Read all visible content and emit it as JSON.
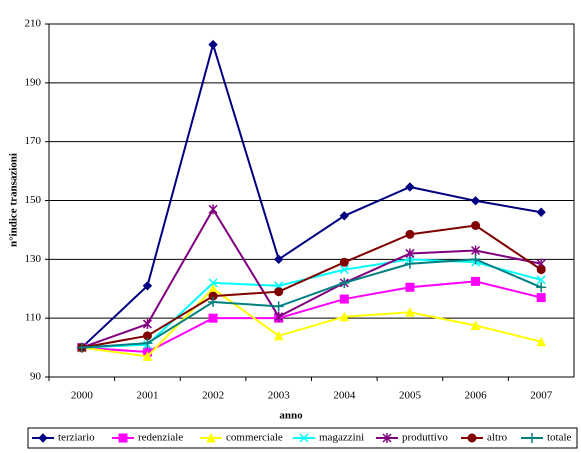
{
  "chart_data": {
    "type": "line",
    "x_label": "anno",
    "y_label": "n°indice  transazioni",
    "categories": [
      "2000",
      "2001",
      "2002",
      "2003",
      "2004",
      "2005",
      "2006",
      "2007"
    ],
    "ylim": [
      90,
      210
    ],
    "yticks": [
      90,
      110,
      130,
      150,
      170,
      190,
      210
    ],
    "grid": true,
    "legend": "bottom",
    "series": [
      {
        "name": "terziario",
        "color": "#000080",
        "marker": "diamond",
        "values": [
          100,
          121,
          203,
          130,
          144.8,
          154.6,
          149.9,
          146
        ]
      },
      {
        "name": "redenziale",
        "color": "#ff00ff",
        "marker": "square",
        "values": [
          100,
          98.5,
          110,
          110,
          116.5,
          120.5,
          122.5,
          117
        ]
      },
      {
        "name": "commerciale",
        "color": "#ffff00",
        "marker": "triangle",
        "values": [
          100,
          97,
          120,
          104,
          110.5,
          112,
          107.5,
          102
        ]
      },
      {
        "name": "magazzini",
        "color": "#00ffff",
        "marker": "x",
        "values": [
          100,
          101,
          122,
          121,
          126.5,
          130,
          129,
          123
        ]
      },
      {
        "name": "produttivo",
        "color": "#800080",
        "marker": "asterisk",
        "values": [
          100,
          108,
          147,
          110.5,
          122,
          132,
          133,
          128.5
        ]
      },
      {
        "name": "altro",
        "color": "#800000",
        "marker": "circle",
        "values": [
          100,
          104,
          117.5,
          119,
          129,
          138.5,
          141.5,
          126.5
        ]
      },
      {
        "name": "totale",
        "color": "#008080",
        "marker": "plus",
        "values": [
          100,
          101.5,
          115.5,
          114,
          122,
          128.5,
          130,
          120.5
        ]
      }
    ]
  }
}
